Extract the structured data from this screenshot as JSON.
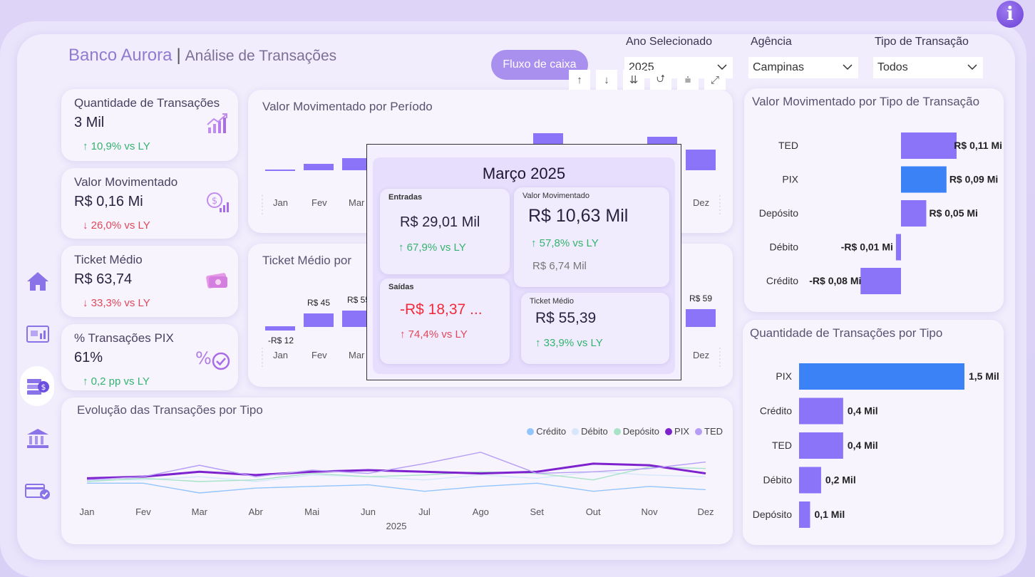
{
  "app": {
    "title": "Banco Aurora",
    "separator": "|",
    "subtitle": "Análise de Transações",
    "info_symbol": "i"
  },
  "header": {
    "cashflow_button": "Fluxo de caixa"
  },
  "filters": [
    {
      "label": "Ano Selecionado",
      "value": "2025"
    },
    {
      "label": "Agência",
      "value": "Campinas"
    },
    {
      "label": "Tipo de Transação",
      "value": "Todos"
    }
  ],
  "visual_toolbar": [
    "↑",
    "↓",
    "⇊",
    "⮍",
    "⩧",
    "⤢"
  ],
  "nav": {
    "items": [
      "home-icon",
      "report-icon",
      "money-icon",
      "bank-icon",
      "card-check-icon"
    ],
    "active": 2
  },
  "kpis": [
    {
      "title": "Quantidade de Transações",
      "value": "3 Mil",
      "delta": "↑ 10,9% vs LY",
      "trend": "up",
      "icon": "chart-up-icon"
    },
    {
      "title": "Valor Movimentado",
      "value": "R$ 0,16 Mi",
      "delta": "↓ 26,0% vs LY",
      "trend": "down",
      "icon": "dollar-chart-icon"
    },
    {
      "title": "Ticket Médio",
      "value": "R$ 63,74",
      "delta": "↓ 33,3% vs LY",
      "trend": "down",
      "icon": "cash-icon"
    },
    {
      "title": "% Transações PIX",
      "value": "61%",
      "delta": "↑ 0,2 pp vs LY",
      "trend": "up",
      "icon": "percent-check-icon"
    }
  ],
  "colors": {
    "accent": "#8b74f7",
    "pix": "#3b82f6",
    "green": "#34b36f",
    "red": "#e0485a"
  },
  "waterfall_period": {
    "title": "Valor Movimentado por Período",
    "months": [
      "Jan",
      "Fev",
      "Mar",
      "Dez"
    ]
  },
  "ticket_period": {
    "title": "Ticket Médio por",
    "months": [
      "Jan",
      "Fev",
      "Mar",
      "Dez"
    ],
    "labels": [
      "-R$ 12",
      "R$ 45",
      "R$ 55",
      "R$ 59"
    ]
  },
  "tooltip": {
    "title": "Março 2025",
    "entradas": {
      "label": "Entradas",
      "value": "R$ 29,01 Mil",
      "delta": "↑ 67,9% vs LY"
    },
    "valor": {
      "label": "Valor Movimentado",
      "value": "R$ 10,63 Mil",
      "delta": "↑ 57,8% vs LY",
      "ly": "R$ 6,74 Mil"
    },
    "saidas": {
      "label": "Saídas",
      "value": "-R$ 18,37 ...",
      "delta": "↑ 74,4% vs LY"
    },
    "ticket": {
      "label": "Ticket Médio",
      "value": "R$ 55,39",
      "delta": "↑ 33,9% vs LY"
    }
  },
  "chart_data": [
    {
      "type": "bar",
      "title": "Valor Movimentado por Tipo de Transação",
      "orientation": "horizontal",
      "categories": [
        "TED",
        "PIX",
        "Depósito",
        "Débito",
        "Crédito"
      ],
      "values": [
        0.11,
        0.09,
        0.05,
        -0.01,
        -0.08
      ],
      "data_labels": [
        "R$ 0,11 Mi",
        "R$ 0,09 Mi",
        "R$ 0,05 Mi",
        "-R$ 0,01 Mi",
        "-R$ 0,08 Mi"
      ],
      "xlim": [
        -0.08,
        0.11
      ]
    },
    {
      "type": "bar",
      "title": "Quantidade de Transações por Tipo",
      "orientation": "horizontal",
      "categories": [
        "PIX",
        "Crédito",
        "TED",
        "Débito",
        "Depósito"
      ],
      "values": [
        1.5,
        0.4,
        0.4,
        0.2,
        0.1
      ],
      "data_labels": [
        "1,5 Mil",
        "0,4 Mil",
        "0,4 Mil",
        "0,2 Mil",
        "0,1 Mil"
      ],
      "xlim": [
        0,
        1.5
      ]
    },
    {
      "type": "line",
      "title": "Evolução das Transações por Tipo",
      "x": [
        "Jan",
        "Fev",
        "Mar",
        "Abr",
        "Mai",
        "Jun",
        "Jul",
        "Ago",
        "Set",
        "Out",
        "Nov",
        "Dez"
      ],
      "xlabel": "2025",
      "legend": "top-right",
      "series": [
        {
          "name": "Crédito",
          "color": "#93c5fd",
          "values": [
            13,
            13,
            7,
            10,
            11,
            12,
            8,
            11,
            13,
            8,
            11,
            9
          ]
        },
        {
          "name": "Débito",
          "color": "#d6e7fb",
          "values": [
            15,
            15,
            17,
            14,
            18,
            17,
            15,
            18,
            16,
            20,
            18,
            17
          ]
        },
        {
          "name": "Depósito",
          "color": "#a7e3c6",
          "values": [
            14,
            16,
            14,
            15,
            19,
            17,
            18,
            20,
            19,
            15,
            23,
            22
          ]
        },
        {
          "name": "PIX",
          "color": "#7e22ce",
          "values": [
            16,
            17,
            20,
            18,
            20,
            21,
            20,
            19,
            20,
            25,
            24,
            19
          ]
        },
        {
          "name": "TED",
          "color": "#b59cf5",
          "values": [
            15,
            17,
            24,
            17,
            21,
            19,
            25,
            32,
            19,
            20,
            22,
            26
          ]
        }
      ],
      "ylim": [
        0,
        35
      ]
    }
  ]
}
